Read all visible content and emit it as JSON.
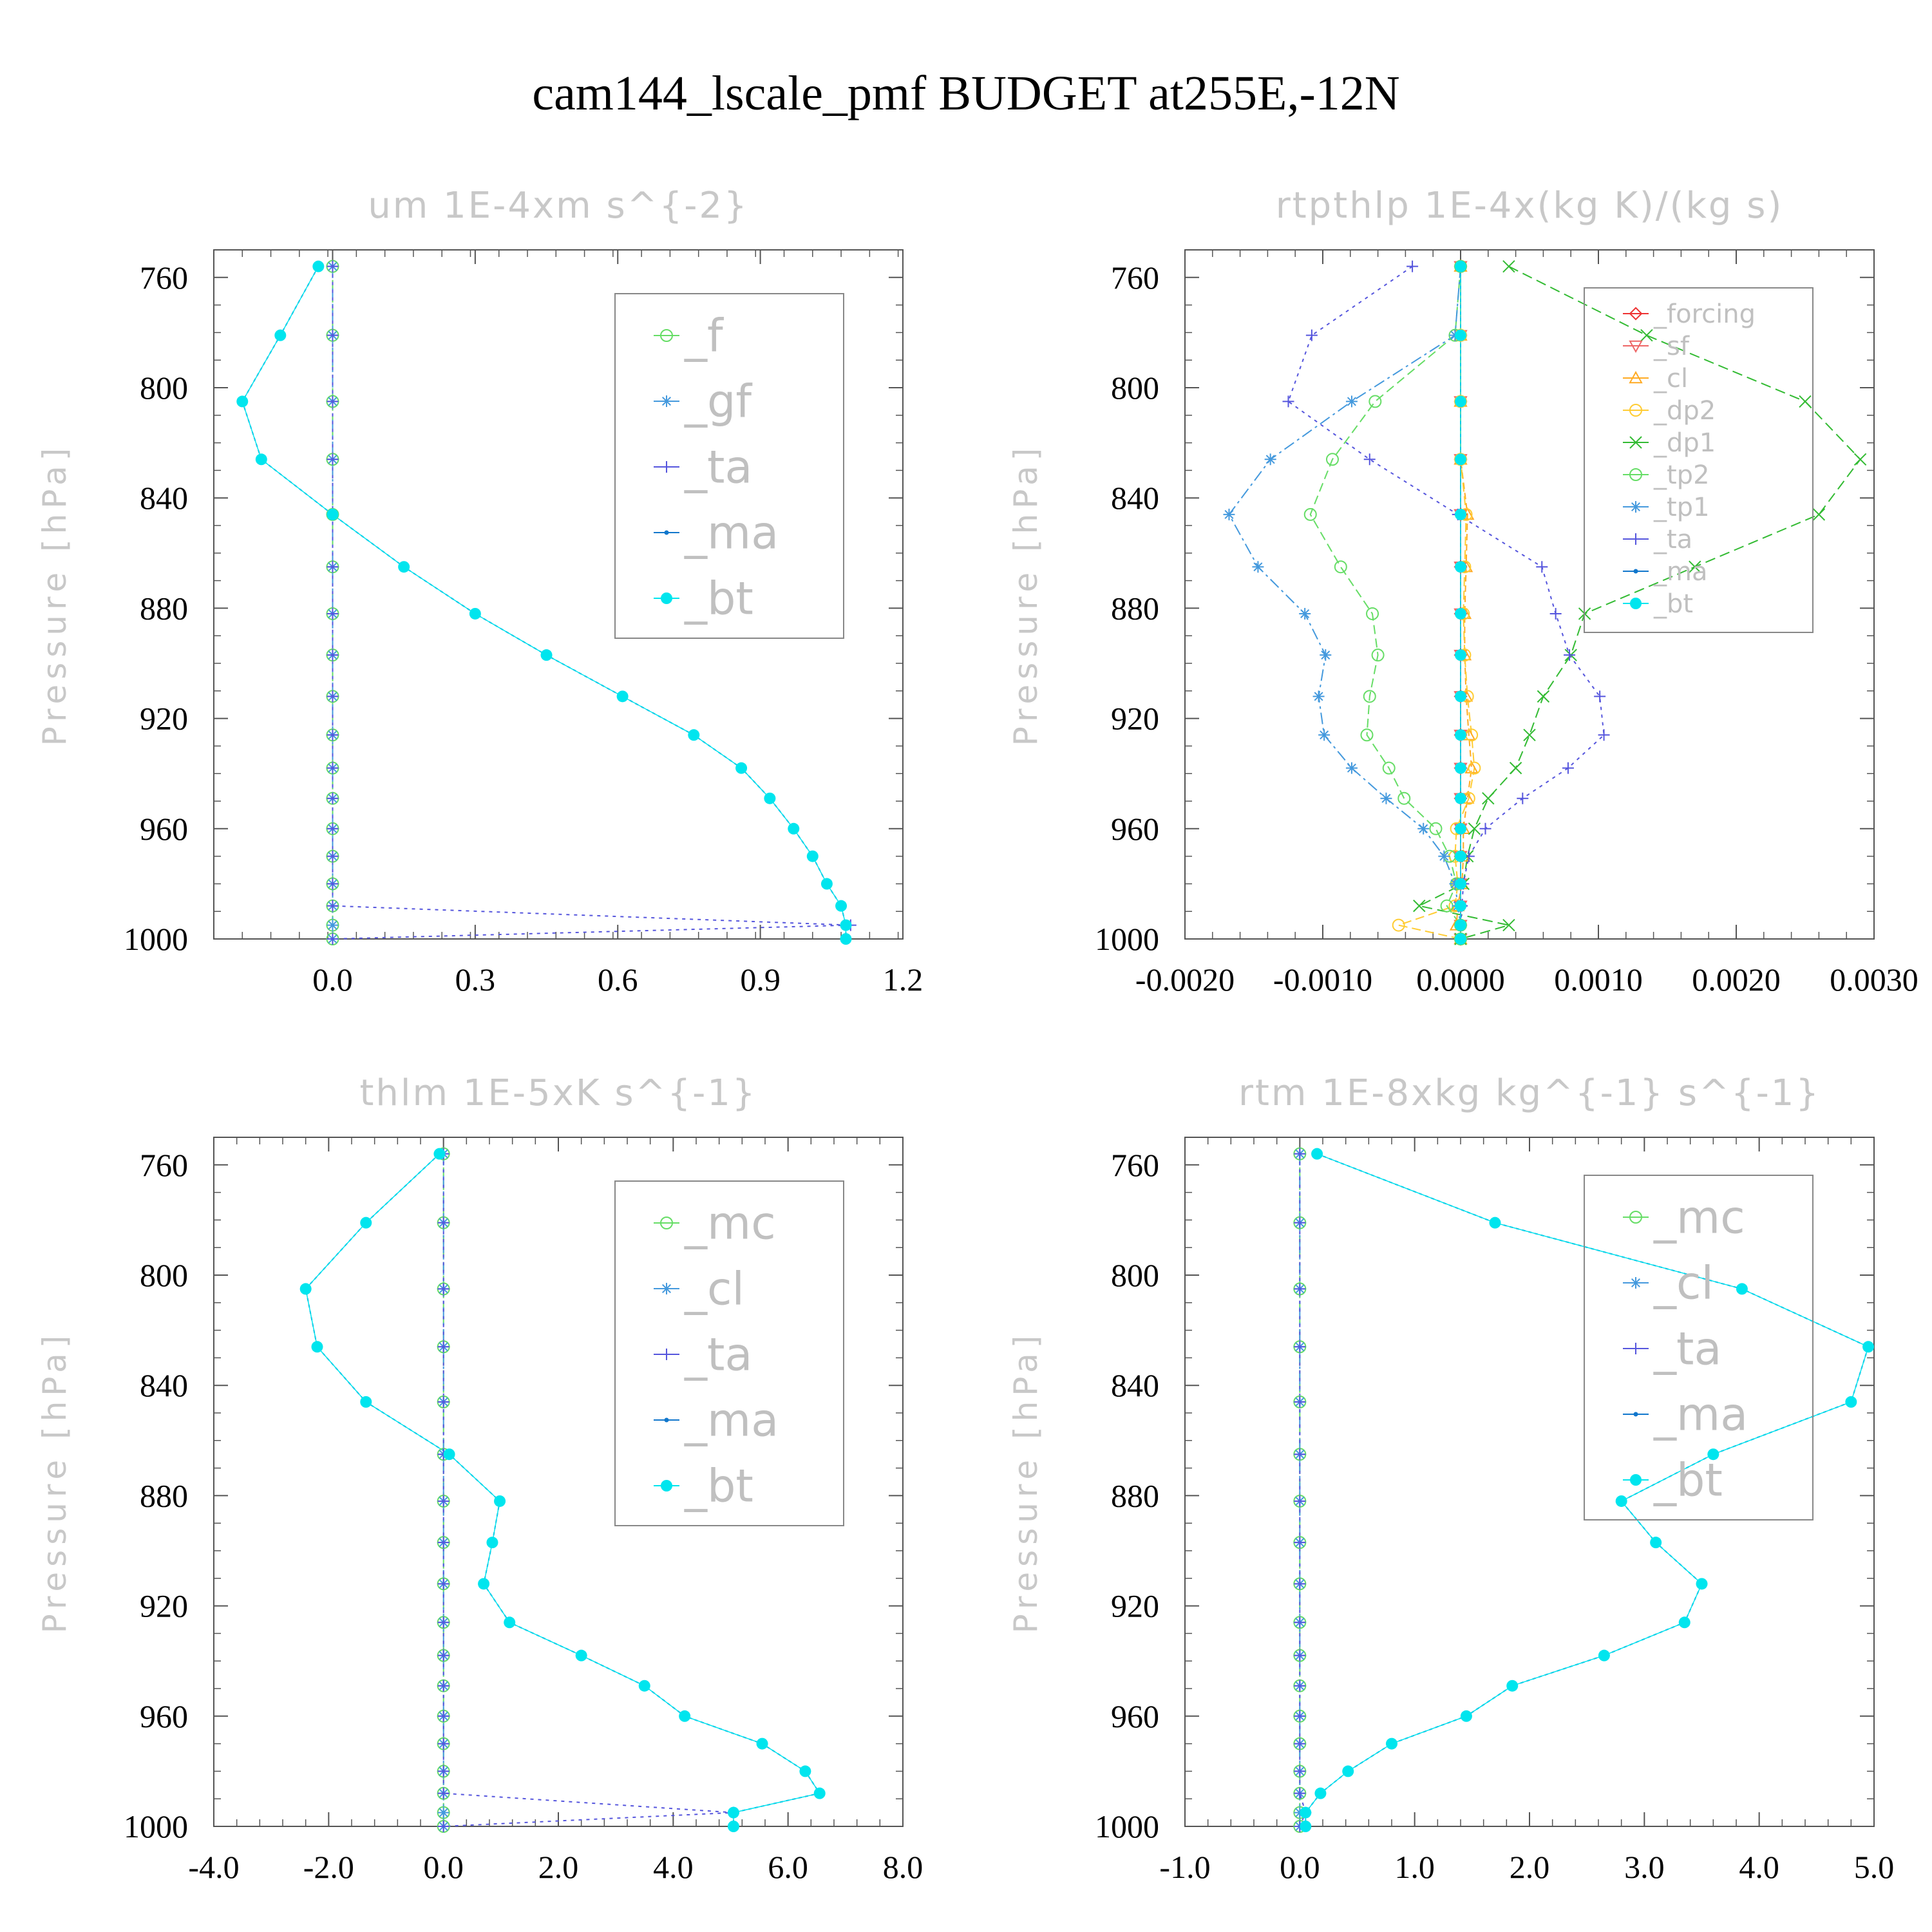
{
  "title": "cam144_lscale_pmf  BUDGET at255E,-12N",
  "colors": {
    "f": "#66dd66",
    "gf": "#4499dd",
    "ta": "#5555dd",
    "ma": "#1177cc",
    "bt": "#00e5ee",
    "forcing": "#ee3333",
    "sf": "#ee6666",
    "cl_orange": "#ffaa22",
    "dp2": "#ffcc33",
    "dp1": "#33bb33",
    "tp2": "#66dd66",
    "tp1": "#4499dd",
    "axis": "#555555"
  },
  "chart_data": [
    {
      "type": "line",
      "title": "um   1E-4xm s^{-2}",
      "ylabel": "Pressure [hPa]",
      "xlim": [
        -0.25,
        1.2
      ],
      "xticks": [
        "0.0",
        "0.3",
        "0.6",
        "0.9",
        "1.2"
      ],
      "xtick_values": [
        0.0,
        0.3,
        0.6,
        0.9,
        1.2
      ],
      "ylim": [
        750,
        1000
      ],
      "yticks": [
        "760",
        "800",
        "840",
        "880",
        "920",
        "960",
        "1000"
      ],
      "legend": [
        "_f",
        "_gf",
        "_ta",
        "_ma",
        "_bt"
      ],
      "legend_position": "upper-right",
      "levels": [
        756,
        781,
        805,
        826,
        846,
        865,
        882,
        897,
        912,
        926,
        938,
        949,
        960,
        970,
        980,
        988,
        995,
        1000
      ],
      "series": [
        {
          "name": "_f",
          "color_key": "f",
          "marker": "circle",
          "values": [
            0,
            0,
            0,
            0,
            0,
            0,
            0,
            0,
            0,
            0,
            0,
            0,
            0,
            0,
            0,
            0,
            0,
            0
          ]
        },
        {
          "name": "_gf",
          "color_key": "gf",
          "marker": "star",
          "values": [
            0,
            0,
            0,
            0,
            0,
            0,
            0,
            0,
            0,
            0,
            0,
            0,
            0,
            0,
            0,
            0,
            0,
            0
          ]
        },
        {
          "name": "_ta",
          "color_key": "ta",
          "marker": "plus",
          "values": [
            0,
            0,
            0,
            0,
            0,
            0,
            0,
            0,
            0,
            0,
            0,
            0,
            0,
            0,
            0,
            0,
            1.09,
            0
          ]
        },
        {
          "name": "_ma",
          "color_key": "ma",
          "marker": "dot",
          "values": [
            -0.03,
            -0.11,
            -0.19,
            -0.15,
            0.0,
            0.15,
            0.3,
            0.45,
            0.61,
            0.76,
            0.86,
            0.92,
            0.97,
            1.01,
            1.04,
            1.07,
            1.08,
            1.08
          ]
        },
        {
          "name": "_bt",
          "color_key": "bt",
          "marker": "filled",
          "values": [
            -0.03,
            -0.11,
            -0.19,
            -0.15,
            0.0,
            0.15,
            0.3,
            0.45,
            0.61,
            0.76,
            0.86,
            0.92,
            0.97,
            1.01,
            1.04,
            1.07,
            1.08,
            1.08
          ]
        }
      ]
    },
    {
      "type": "line",
      "title": "rtpthlp   1E-4x(kg K)/(kg s)",
      "ylabel": "Pressure [hPa]",
      "xlim": [
        -0.002,
        0.003
      ],
      "xticks": [
        "-0.0020",
        "-0.0010",
        "0.0000",
        "0.0010",
        "0.0020",
        "0.0030"
      ],
      "xtick_values": [
        -0.002,
        -0.001,
        0.0,
        0.001,
        0.002,
        0.003
      ],
      "ylim": [
        750,
        1000
      ],
      "yticks": [
        "760",
        "800",
        "840",
        "880",
        "920",
        "960",
        "1000"
      ],
      "legend": [
        "_forcing",
        "_sf",
        "_cl",
        "_dp2",
        "_dp1",
        "_tp2",
        "_tp1",
        "_ta",
        "_ma",
        "_bt"
      ],
      "legend_position": "upper-right",
      "levels": [
        756,
        781,
        805,
        826,
        846,
        865,
        882,
        897,
        912,
        926,
        938,
        949,
        960,
        970,
        980,
        988,
        995,
        1000
      ],
      "series": [
        {
          "name": "_forcing",
          "color_key": "forcing",
          "marker": "diamond",
          "values": [
            0,
            0,
            0,
            0,
            0,
            0,
            0,
            0,
            0,
            0,
            0,
            0,
            0,
            0,
            0,
            0,
            0,
            0
          ]
        },
        {
          "name": "_sf",
          "color_key": "sf",
          "marker": "triangle-down",
          "values": [
            0,
            0,
            0,
            0,
            0,
            0,
            0,
            0,
            0,
            0,
            0,
            0,
            0,
            0,
            0,
            0,
            0,
            0
          ]
        },
        {
          "name": "_cl",
          "color_key": "cl_orange",
          "marker": "triangle",
          "values": [
            0,
            0,
            0,
            0,
            5e-05,
            4e-05,
            3e-05,
            3e-05,
            4e-05,
            6e-05,
            8e-05,
            5e-05,
            2e-05,
            2e-05,
            1e-05,
            -2e-05,
            -3e-05,
            0
          ]
        },
        {
          "name": "_dp2",
          "color_key": "dp2",
          "marker": "circle",
          "values": [
            0,
            0,
            0,
            0,
            4e-05,
            3e-05,
            2e-05,
            3e-05,
            5e-05,
            8e-05,
            0.0001,
            6e-05,
            -3e-05,
            -4e-05,
            -2e-05,
            -4e-05,
            -0.00045,
            0
          ]
        },
        {
          "name": "_dp1",
          "color_key": "dp1",
          "marker": "cross",
          "values": [
            0.00035,
            0.00135,
            0.0025,
            0.0029,
            0.0026,
            0.0017,
            0.0009,
            0.0008,
            0.0006,
            0.0005,
            0.0004,
            0.0002,
            0.0001,
            5e-05,
            2e-05,
            -0.0003,
            0.00035,
            0
          ]
        },
        {
          "name": "_tp2",
          "color_key": "tp2",
          "marker": "circle",
          "values": [
            0,
            -4e-05,
            -0.00062,
            -0.00093,
            -0.00109,
            -0.00087,
            -0.00064,
            -0.0006,
            -0.00066,
            -0.00068,
            -0.00052,
            -0.00041,
            -0.00018,
            -8e-05,
            -3e-05,
            -0.0001,
            0,
            0
          ]
        },
        {
          "name": "_tp1",
          "color_key": "tp1",
          "marker": "star",
          "values": [
            0,
            -4e-05,
            -0.00079,
            -0.00138,
            -0.00168,
            -0.00147,
            -0.00113,
            -0.00098,
            -0.00103,
            -0.00099,
            -0.00079,
            -0.00054,
            -0.00027,
            -0.00012,
            -4e-05,
            -2e-05,
            0,
            0
          ]
        },
        {
          "name": "_ta",
          "color_key": "ta",
          "marker": "plus",
          "values": [
            -0.00035,
            -0.00108,
            -0.00125,
            -0.00066,
            -2e-05,
            0.00059,
            0.00069,
            0.00079,
            0.00101,
            0.00104,
            0.00078,
            0.00045,
            0.00018,
            6e-05,
            2e-05,
            1e-05,
            0,
            0
          ]
        },
        {
          "name": "_ma",
          "color_key": "ma",
          "marker": "dot",
          "values": [
            0,
            0,
            0,
            0,
            0,
            0,
            0,
            0,
            0,
            0,
            0,
            0,
            0,
            0,
            0,
            0,
            0,
            0
          ]
        },
        {
          "name": "_bt",
          "color_key": "bt",
          "marker": "filled",
          "values": [
            0,
            0,
            0,
            0,
            0,
            0,
            0,
            0,
            0,
            0,
            0,
            0,
            0,
            0,
            0,
            0,
            0,
            0
          ]
        }
      ]
    },
    {
      "type": "line",
      "title": "thlm   1E-5xK s^{-1}",
      "ylabel": "Pressure [hPa]",
      "xlim": [
        -4.0,
        8.0
      ],
      "xticks": [
        "-4.0",
        "-2.0",
        "0.0",
        "2.0",
        "4.0",
        "6.0",
        "8.0"
      ],
      "xtick_values": [
        -4.0,
        -2.0,
        0.0,
        2.0,
        4.0,
        6.0,
        8.0
      ],
      "ylim": [
        750,
        1000
      ],
      "yticks": [
        "760",
        "800",
        "840",
        "880",
        "920",
        "960",
        "1000"
      ],
      "legend": [
        "_mc",
        "_cl",
        "_ta",
        "_ma",
        "_bt"
      ],
      "legend_position": "upper-right",
      "levels": [
        756,
        781,
        805,
        826,
        846,
        865,
        882,
        897,
        912,
        926,
        938,
        949,
        960,
        970,
        980,
        988,
        995,
        1000
      ],
      "series": [
        {
          "name": "_mc",
          "color_key": "f",
          "marker": "circle",
          "values": [
            0,
            0,
            0,
            0,
            0,
            0,
            0,
            0,
            0,
            0,
            0,
            0,
            0,
            0,
            0,
            0,
            0,
            0
          ]
        },
        {
          "name": "_cl",
          "color_key": "gf",
          "marker": "star",
          "values": [
            0,
            0,
            0,
            0,
            0,
            0,
            0,
            0,
            0,
            0,
            0,
            0,
            0,
            0,
            0,
            0,
            0,
            0
          ]
        },
        {
          "name": "_ta",
          "color_key": "ta",
          "marker": "plus",
          "values": [
            0,
            0,
            0,
            0,
            0,
            0,
            0,
            0,
            0,
            0,
            0,
            0,
            0,
            0,
            0,
            0,
            5.05,
            0
          ]
        },
        {
          "name": "_ma",
          "color_key": "ma",
          "marker": "dot",
          "values": [
            -0.07,
            -1.35,
            -2.4,
            -2.2,
            -1.35,
            0.1,
            0.98,
            0.85,
            0.7,
            1.15,
            2.4,
            3.5,
            4.2,
            5.55,
            6.3,
            6.55,
            5.05,
            5.05
          ]
        },
        {
          "name": "_bt",
          "color_key": "bt",
          "marker": "filled",
          "values": [
            -0.07,
            -1.35,
            -2.4,
            -2.2,
            -1.35,
            0.1,
            0.98,
            0.85,
            0.7,
            1.15,
            2.4,
            3.5,
            4.2,
            5.55,
            6.3,
            6.55,
            5.05,
            5.05
          ]
        }
      ]
    },
    {
      "type": "line",
      "title": "rtm   1E-8xkg kg^{-1} s^{-1}",
      "ylabel": "Pressure [hPa]",
      "xlim": [
        -1.0,
        5.0
      ],
      "xticks": [
        "-1.0",
        "0.0",
        "1.0",
        "2.0",
        "3.0",
        "4.0",
        "5.0"
      ],
      "xtick_values": [
        -1.0,
        0.0,
        1.0,
        2.0,
        3.0,
        4.0,
        5.0
      ],
      "ylim": [
        750,
        1000
      ],
      "yticks": [
        "760",
        "800",
        "840",
        "880",
        "920",
        "960",
        "1000"
      ],
      "legend": [
        "_mc",
        "_cl",
        "_ta",
        "_ma",
        "_bt"
      ],
      "legend_position": "upper-right",
      "levels": [
        756,
        781,
        805,
        826,
        846,
        865,
        882,
        897,
        912,
        926,
        938,
        949,
        960,
        970,
        980,
        988,
        995,
        1000
      ],
      "series": [
        {
          "name": "_mc",
          "color_key": "f",
          "marker": "circle",
          "values": [
            0,
            0,
            0,
            0,
            0,
            0,
            0,
            0,
            0,
            0,
            0,
            0,
            0,
            0,
            0,
            0,
            0,
            0
          ]
        },
        {
          "name": "_cl",
          "color_key": "gf",
          "marker": "star",
          "values": [
            0,
            0,
            0,
            0,
            0,
            0,
            0,
            0,
            0,
            0,
            0,
            0,
            0,
            0,
            0,
            0,
            0,
            0
          ]
        },
        {
          "name": "_ta",
          "color_key": "ta",
          "marker": "plus",
          "values": [
            0,
            0,
            0,
            0,
            0,
            0,
            0,
            0,
            0,
            0,
            0,
            0,
            0,
            0,
            0,
            0,
            0.05,
            0
          ]
        },
        {
          "name": "_ma",
          "color_key": "ma",
          "marker": "dot",
          "values": [
            0.15,
            1.7,
            3.85,
            4.95,
            4.8,
            3.6,
            2.8,
            3.1,
            3.5,
            3.35,
            2.65,
            1.85,
            1.45,
            0.8,
            0.42,
            0.18,
            0.05,
            0.05
          ]
        },
        {
          "name": "_bt",
          "color_key": "bt",
          "marker": "filled",
          "values": [
            0.15,
            1.7,
            3.85,
            4.95,
            4.8,
            3.6,
            2.8,
            3.1,
            3.5,
            3.35,
            2.65,
            1.85,
            1.45,
            0.8,
            0.42,
            0.18,
            0.05,
            0.05
          ]
        }
      ]
    }
  ]
}
